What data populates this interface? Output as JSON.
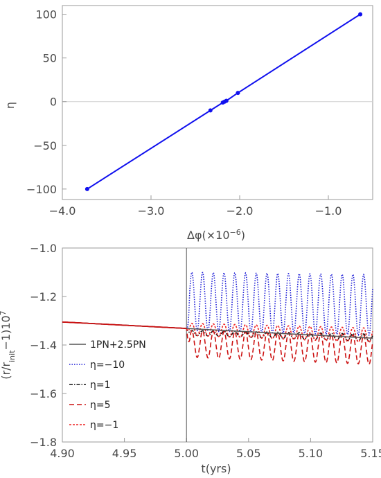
{
  "chart_data": [
    {
      "type": "line",
      "xlabel": "Δφ(×10",
      "xlabel_exp": "−6",
      "xlabel_close": ")",
      "ylabel": "η",
      "xlim": [
        -4.0,
        -0.5
      ],
      "ylim": [
        -112,
        110
      ],
      "x_ticks": [
        -4.0,
        -3.0,
        -2.0,
        -1.0
      ],
      "x_tick_labels": [
        "−4.0",
        "−3.0",
        "−2.0",
        "−1.0"
      ],
      "y_ticks": [
        -100,
        -50,
        0,
        50,
        100
      ],
      "y_tick_labels": [
        "−100",
        "−50",
        "0",
        "50",
        "100"
      ],
      "grid": false,
      "zero_line": true,
      "series": [
        {
          "color": "#1010ee",
          "markers": true,
          "x": [
            -3.72,
            -2.33,
            -2.19,
            -2.17,
            -2.15,
            -2.02,
            -0.64
          ],
          "y": [
            -100,
            -10,
            -1,
            0,
            1,
            10,
            100
          ]
        }
      ]
    },
    {
      "type": "line",
      "xlabel": "t(yrs)",
      "ylabel_main": "(r/r",
      "ylabel_sub": "init",
      "ylabel_mid": "−1)10",
      "ylabel_sup": "7",
      "xlim": [
        4.9,
        5.15
      ],
      "ylim": [
        -1.8,
        -1.0
      ],
      "x_ticks": [
        4.9,
        4.95,
        5.0,
        5.05,
        5.1,
        5.15
      ],
      "x_tick_labels": [
        "4.90",
        "4.95",
        "5.00",
        "5.05",
        "5.10",
        "5.15"
      ],
      "y_ticks": [
        -1.8,
        -1.6,
        -1.4,
        -1.2,
        -1.0
      ],
      "y_tick_labels": [
        "−1.8",
        "−1.6",
        "−1.4",
        "−1.2",
        "−1.0"
      ],
      "vertical_marker_x": 5.0,
      "legend_position": "lower-left",
      "series": [
        {
          "name": "1PN+2.5PN",
          "color": "#555555",
          "dash": "solid",
          "mean": [
            [
              4.9,
              -1.305
            ],
            [
              5.15,
              -1.372
            ]
          ],
          "oscillation": null
        },
        {
          "name": "η=−10",
          "color": "#1a1ad6",
          "dash": "dotted",
          "oscillation": {
            "start": 5.0,
            "period": 0.00865,
            "max": [
              -1.1,
              -1.11
            ],
            "min": [
              -1.34,
              -1.36
            ]
          }
        },
        {
          "name": "η=1",
          "color": "#111111",
          "dash": "dashdot",
          "oscillation": {
            "start": 5.0,
            "period": 0.00865,
            "max": [
              -1.34,
              -1.355
            ],
            "min": [
              -1.36,
              -1.385
            ]
          }
        },
        {
          "name": "η=5",
          "color": "#cc1111",
          "dash": "dashed",
          "oscillation": {
            "start": 5.0,
            "period": 0.00865,
            "max": [
              -1.34,
              -1.36
            ],
            "min": [
              -1.45,
              -1.48
            ]
          }
        },
        {
          "name": "η=−1",
          "color": "#ee2222",
          "dash": "finedash",
          "oscillation": {
            "start": 5.0,
            "period": 0.00865,
            "max": [
              -1.31,
              -1.33
            ],
            "min": [
              -1.36,
              -1.39
            ]
          }
        }
      ]
    }
  ]
}
